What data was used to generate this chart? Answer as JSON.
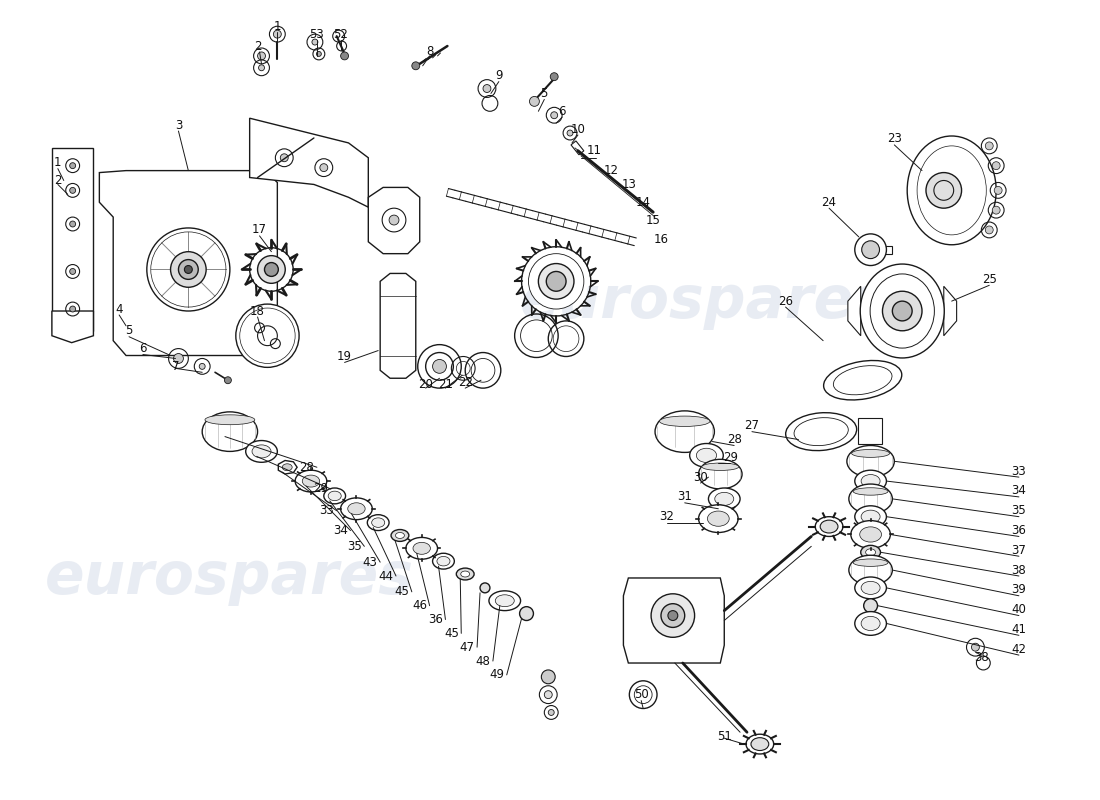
{
  "background_color": "#ffffff",
  "line_color": "#1a1a1a",
  "watermark_color": "#c5cfe0",
  "watermark_alpha": 0.38,
  "label_color": "#111111",
  "label_fs": 8.5,
  "figsize": [
    11.0,
    8.0
  ],
  "dpi": 100,
  "top_labels": [
    [
      "1",
      268,
      22
    ],
    [
      "2",
      248,
      42
    ],
    [
      "53",
      308,
      30
    ],
    [
      "52",
      332,
      30
    ],
    [
      "8",
      422,
      48
    ],
    [
      "9",
      492,
      72
    ],
    [
      "5",
      538,
      90
    ],
    [
      "6",
      556,
      108
    ],
    [
      "10",
      572,
      126
    ],
    [
      "11",
      588,
      148
    ],
    [
      "12",
      606,
      168
    ],
    [
      "13",
      624,
      182
    ],
    [
      "14",
      638,
      200
    ],
    [
      "15",
      648,
      218
    ],
    [
      "16",
      656,
      238
    ],
    [
      "3",
      168,
      122
    ],
    [
      "17",
      250,
      228
    ],
    [
      "18",
      248,
      310
    ],
    [
      "19",
      336,
      356
    ],
    [
      "20",
      418,
      384
    ],
    [
      "21",
      438,
      384
    ],
    [
      "22",
      458,
      382
    ],
    [
      "1",
      46,
      160
    ],
    [
      "2",
      46,
      178
    ],
    [
      "4",
      108,
      308
    ],
    [
      "5",
      118,
      330
    ],
    [
      "6",
      132,
      348
    ],
    [
      "7",
      165,
      366
    ]
  ],
  "right_labels": [
    [
      "23",
      892,
      136
    ],
    [
      "24",
      826,
      200
    ],
    [
      "25",
      988,
      278
    ],
    [
      "26",
      782,
      300
    ],
    [
      "27",
      748,
      426
    ]
  ],
  "bottom_left_labels": [
    [
      "28",
      298,
      468
    ],
    [
      "29",
      312,
      490
    ],
    [
      "33",
      318,
      512
    ],
    [
      "34",
      332,
      532
    ],
    [
      "35",
      346,
      548
    ],
    [
      "43",
      362,
      564
    ],
    [
      "44",
      378,
      578
    ],
    [
      "45",
      394,
      594
    ],
    [
      "46",
      412,
      608
    ],
    [
      "36",
      428,
      622
    ],
    [
      "45",
      444,
      636
    ],
    [
      "47",
      460,
      650
    ],
    [
      "48",
      476,
      664
    ],
    [
      "49",
      490,
      678
    ]
  ],
  "bottom_center_labels": [
    [
      "28",
      730,
      440
    ],
    [
      "29",
      726,
      458
    ],
    [
      "30",
      696,
      478
    ],
    [
      "31",
      680,
      498
    ],
    [
      "32",
      662,
      518
    ]
  ],
  "bottom_right_labels": [
    [
      "33",
      1018,
      472
    ],
    [
      "34",
      1018,
      492
    ],
    [
      "35",
      1018,
      512
    ],
    [
      "36",
      1018,
      532
    ],
    [
      "37",
      1018,
      552
    ],
    [
      "38",
      1018,
      572
    ],
    [
      "39",
      1018,
      592
    ],
    [
      "40",
      1018,
      612
    ],
    [
      "41",
      1018,
      632
    ],
    [
      "42",
      1018,
      652
    ]
  ],
  "misc_labels": [
    [
      "38",
      980,
      660
    ],
    [
      "50",
      636,
      698
    ],
    [
      "51",
      720,
      740
    ]
  ]
}
